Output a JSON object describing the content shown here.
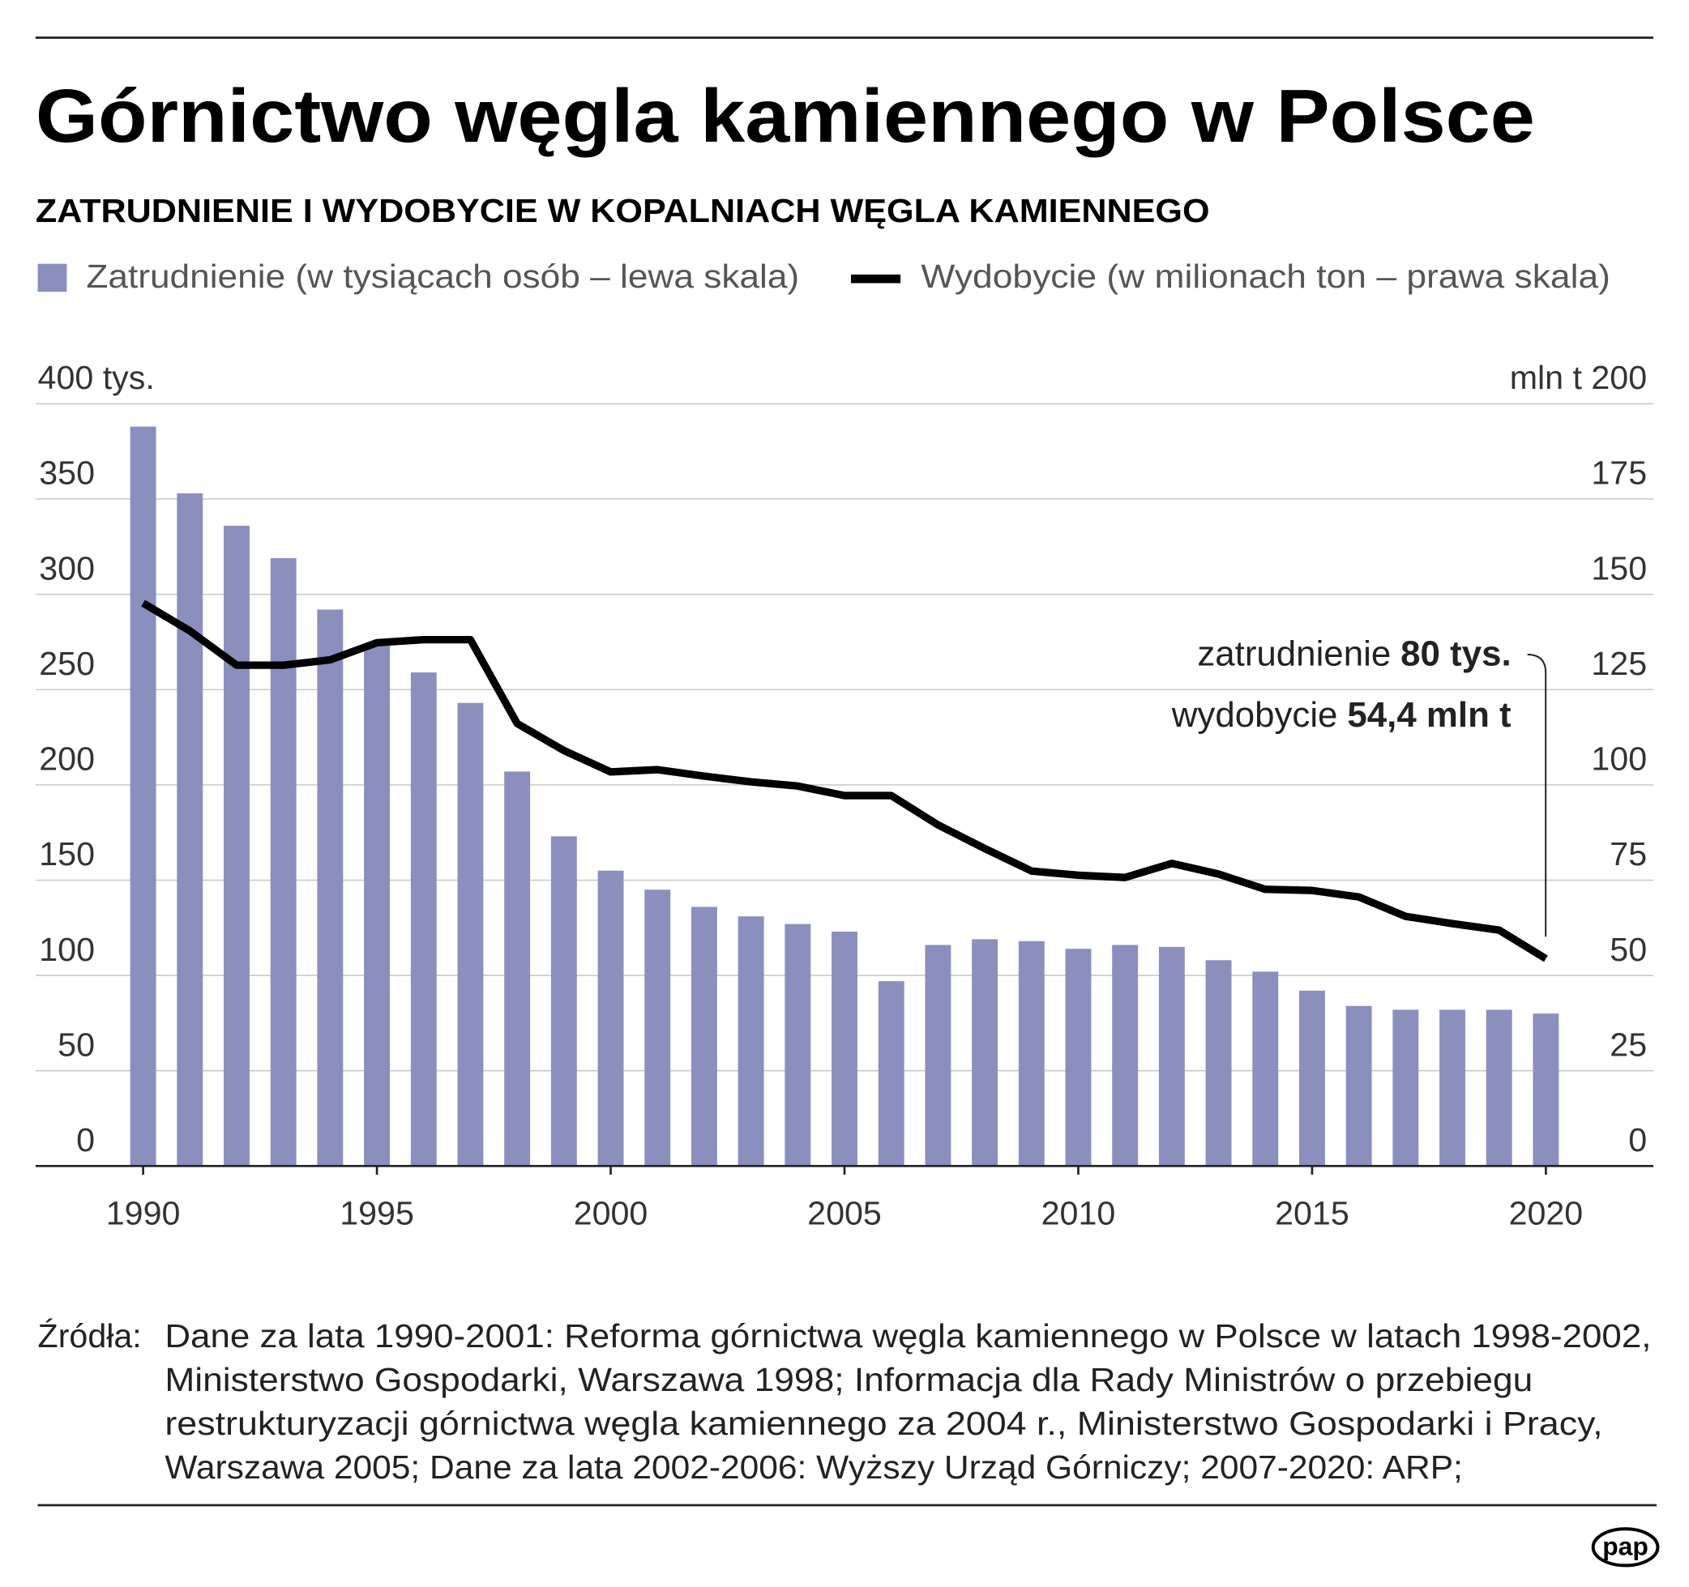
{
  "chart_data": {
    "type": "bar",
    "title": "Górnictwo węgla kamiennego w Polsce",
    "subtitle": "ZATRUDNIENIE I WYDOBYCIE W KOPALNIACH WĘGLA KAMIENNEGO",
    "x": [
      1990,
      1991,
      1992,
      1993,
      1994,
      1995,
      1996,
      1997,
      1998,
      1999,
      2000,
      2001,
      2002,
      2003,
      2004,
      2005,
      2006,
      2007,
      2008,
      2009,
      2010,
      2011,
      2012,
      2013,
      2014,
      2015,
      2016,
      2017,
      2018,
      2019,
      2020
    ],
    "series": [
      {
        "name": "Zatrudnienie (w tysiącach osób – lewa skala)",
        "type": "bar",
        "color": "#8a8fbd",
        "values": [
          388,
          353,
          336,
          319,
          292,
          274,
          259,
          243,
          207,
          173,
          155,
          145,
          136,
          131,
          127,
          123,
          97,
          116,
          119,
          118,
          114,
          116,
          115,
          108,
          102,
          92,
          84,
          82,
          82,
          82,
          80
        ]
      },
      {
        "name": "Wydobycie (w milionach ton – prawa skala)",
        "type": "line",
        "color": "#000000",
        "axis": "y2",
        "values": [
          147.7,
          140.4,
          131.4,
          131.4,
          132.8,
          137.3,
          138.1,
          138.1,
          116.1,
          109.0,
          103.4,
          104.0,
          102.3,
          100.8,
          99.7,
          97.2,
          97.2,
          89.5,
          83.3,
          77.4,
          76.3,
          75.7,
          79.4,
          76.6,
          72.6,
          72.3,
          70.6,
          65.5,
          63.6,
          61.9,
          54.4
        ]
      }
    ],
    "xlim": [
      1987.7,
      2022.3
    ],
    "xticks": [
      1990,
      1995,
      2000,
      2005,
      2010,
      2015,
      2020
    ],
    "ylim": [
      0,
      400
    ],
    "yticks": [
      0,
      50,
      100,
      150,
      200,
      250,
      300,
      350,
      {
        "value": 400,
        "label": "400 tys."
      }
    ],
    "y2lim": [
      0,
      200
    ],
    "y2ticks": [
      0,
      25,
      50,
      75,
      100,
      125,
      150,
      175,
      {
        "value": 200,
        "label": "mln t 200"
      }
    ],
    "grid": true,
    "annotations": [
      "zatrudnienie",
      "80 tys.",
      "wydobycie",
      "54,4 mln t"
    ],
    "source_label": "Źródła:",
    "source_lines": [
      "Dane za lata 1990-2001: Reforma górnictwa węgla kamiennego w Polsce w latach 1998-2002,",
      "Ministerstwo Gospodarki, Warszawa 1998; Informacja dla Rady Ministrów o przebiegu",
      "restrukturyzacji górnictwa węgla kamiennego za 2004 r., Ministerstwo Gospodarki i Pracy,",
      "Warszawa 2005; Dane za lata 2002-2006: Wyższy Urząd Górniczy; 2007-2020: ARP;"
    ],
    "logo": "pap"
  }
}
